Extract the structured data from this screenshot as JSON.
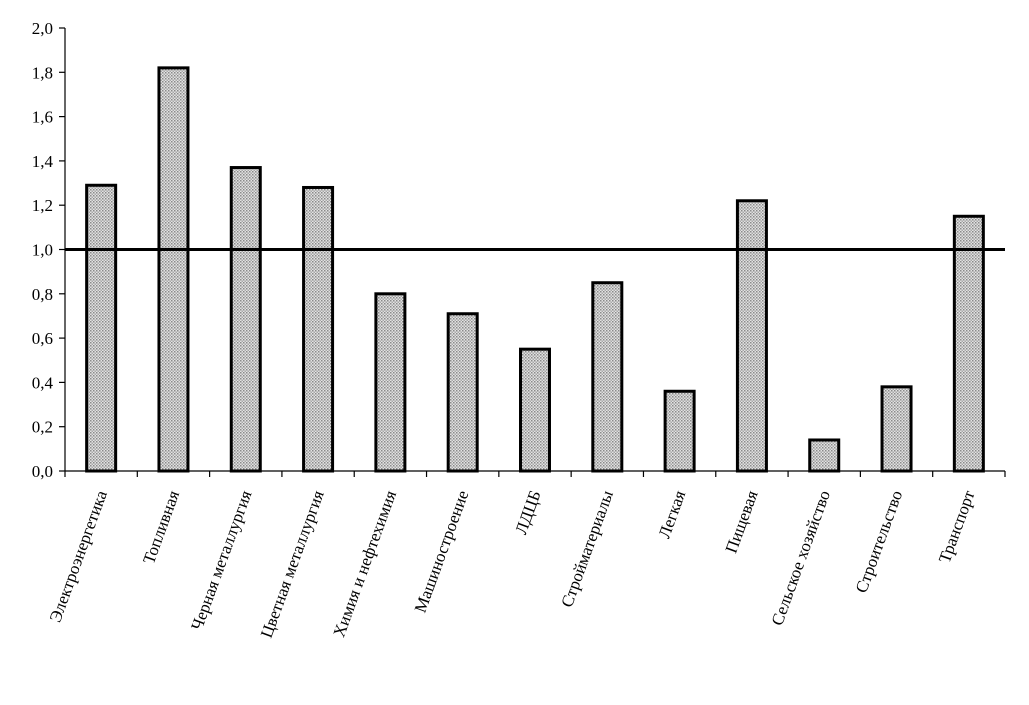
{
  "chart_data": {
    "type": "bar",
    "title": "",
    "xlabel": "",
    "ylabel": "",
    "ylim": [
      0,
      2.0
    ],
    "yticks": [
      "0,0",
      "0,2",
      "0,4",
      "0,6",
      "0,8",
      "1,0",
      "1,2",
      "1,4",
      "1,6",
      "1,8",
      "2,0"
    ],
    "ytick_values": [
      0,
      0.2,
      0.4,
      0.6,
      0.8,
      1.0,
      1.2,
      1.4,
      1.6,
      1.8,
      2.0
    ],
    "grid": false,
    "legend": "none",
    "reference_line": 1.0,
    "categories": [
      "Электроэнергетика",
      "Топливная",
      "Черная металлургия",
      "Цветная металлургия",
      "Химия и нефтехимия",
      "Машиностроение",
      "ЛДЦБ",
      "Стройматериалы",
      "Легкая",
      "Пищевая",
      "Сельское хозяйство",
      "Строительство",
      "Транспорт"
    ],
    "values": [
      1.29,
      1.82,
      1.37,
      1.28,
      0.8,
      0.71,
      0.55,
      0.85,
      0.36,
      1.22,
      0.14,
      0.38,
      1.15
    ],
    "bar_color": "#c8c8c8",
    "bar_pattern": "dotted",
    "bar_edge_color": "#000000"
  }
}
